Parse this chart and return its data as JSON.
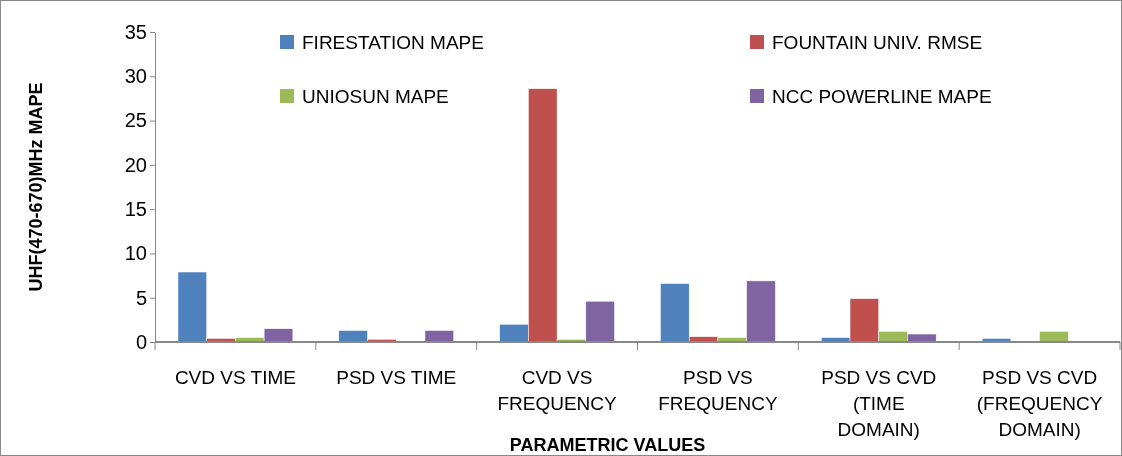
{
  "chart_data": {
    "type": "bar",
    "xlabel": "PARAMETRIC VALUES",
    "ylabel": "UHF(470-670)MHz MAPE",
    "categories": [
      "CVD VS TIME",
      "PSD VS TIME",
      "CVD VS FREQUENCY",
      "PSD VS FREQUENCY",
      "PSD VS CVD (TIME DOMAIN)",
      "PSD VS CVD (FREQUENCY DOMAIN)"
    ],
    "series": [
      {
        "name": "FIRESTATION  MAPE",
        "color": "#4f81bd",
        "values": [
          7.9,
          1.3,
          2.0,
          6.6,
          0.5,
          0.4
        ]
      },
      {
        "name": "FOUNTAIN UNIV.  RMSE",
        "color": "#c0504d",
        "values": [
          0.4,
          0.3,
          28.6,
          0.6,
          4.9,
          0
        ]
      },
      {
        "name": "UNIOSUN MAPE",
        "color": "#9bbb59",
        "values": [
          0.5,
          0.1,
          0.3,
          0.5,
          1.2,
          1.2
        ]
      },
      {
        "name": "NCC POWERLINE MAPE",
        "color": "#8064a2",
        "values": [
          1.5,
          1.3,
          4.6,
          6.9,
          0.9,
          0.1
        ]
      }
    ],
    "ylim": [
      0,
      35
    ],
    "yticks": [
      0,
      5,
      10,
      15,
      20,
      25,
      30,
      35
    ],
    "legend": "top"
  }
}
